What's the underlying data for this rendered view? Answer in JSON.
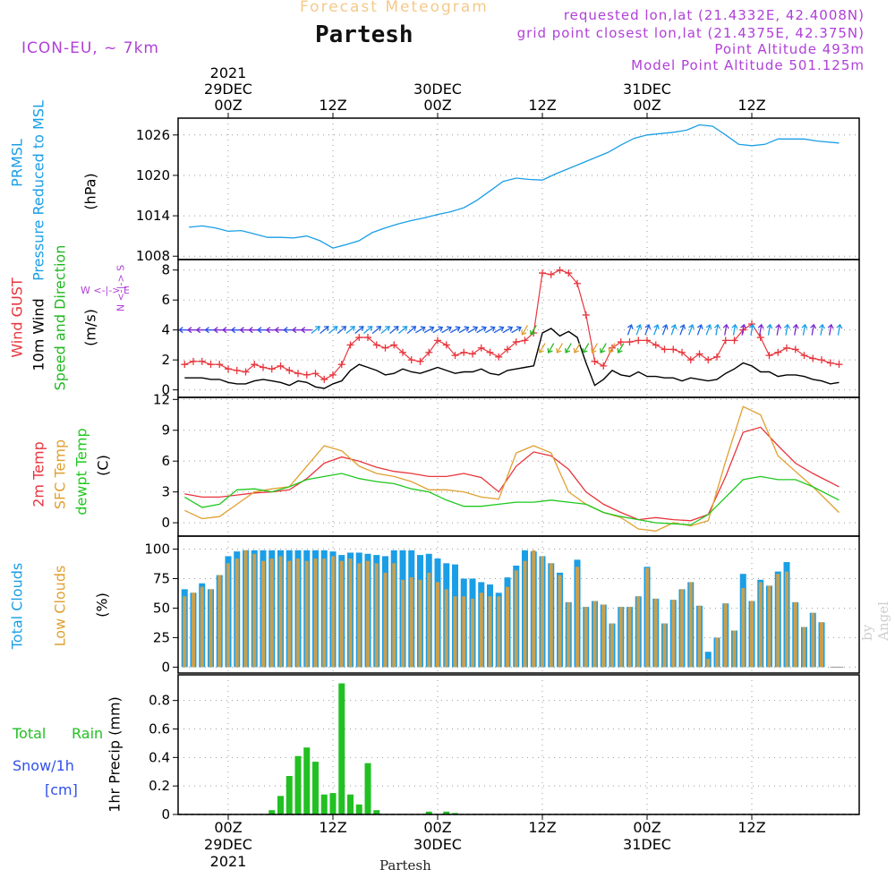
{
  "header": {
    "faint_title": "Forecast Meteogram",
    "location": "Partesh",
    "model": "ICON-EU, ~ 7km",
    "requested": "requested lon,lat (21.4332E, 42.4008N)",
    "grid_point": "grid point closest lon,lat (21.4375E, 42.375N)",
    "point_altitude": "Point Altitude 493m",
    "model_altitude": "Model Point Altitude 501.125m",
    "watermark": "by Angel",
    "bottom_location": "Partesh"
  },
  "colors": {
    "pressure": "#1a9ee6",
    "gust": "#e8353c",
    "wind": "#000000",
    "direction": "#22b822",
    "temp2m": "#e8353c",
    "sfctemp": "#e0a030",
    "dewpt": "#1ec81e",
    "total_clouds": "#1a9ee6",
    "low_clouds": "#c8a050",
    "rain": "#22c022",
    "snow": "#3050e8",
    "label_purple": "#b040d8"
  },
  "time_axis": {
    "top": [
      {
        "hour": 0,
        "lines": [
          "2021",
          "29DEC",
          "00Z"
        ]
      },
      {
        "hour": 12,
        "lines": [
          "12Z"
        ]
      },
      {
        "hour": 24,
        "lines": [
          "30DEC",
          "00Z"
        ]
      },
      {
        "hour": 36,
        "lines": [
          "12Z"
        ]
      },
      {
        "hour": 48,
        "lines": [
          "31DEC",
          "00Z"
        ]
      },
      {
        "hour": 60,
        "lines": [
          "12Z"
        ]
      }
    ],
    "bottom": [
      {
        "hour": 0,
        "lines": [
          "00Z",
          "29DEC",
          "2021"
        ]
      },
      {
        "hour": 12,
        "lines": [
          "12Z"
        ]
      },
      {
        "hour": 24,
        "lines": [
          "00Z",
          "30DEC"
        ]
      },
      {
        "hour": 36,
        "lines": [
          "12Z"
        ]
      },
      {
        "hour": 48,
        "lines": [
          "00Z",
          "31DEC"
        ]
      },
      {
        "hour": 60,
        "lines": [
          "12Z"
        ]
      }
    ]
  },
  "labels": {
    "pressure": {
      "l1": "PRMSL",
      "l2": "Pressure Reduced to MSL",
      "unit": "(hPa)"
    },
    "wind": {
      "l1": "Wind GUST",
      "l2": "10m Wind",
      "l3": "Speed and Direction",
      "unit": "(m/s)",
      "compass_ns": "N <-|-> S",
      "compass_we": "W <-|-> E"
    },
    "temp": {
      "l1": "2m Temp",
      "l2": "SFC Temp",
      "l3": "dewpt Temp",
      "unit": "(C)"
    },
    "clouds": {
      "l1": "Total Clouds",
      "l2": "Low Clouds",
      "unit": "(%)"
    },
    "precip": {
      "rain_l1": "Total",
      "rain_l2": "Rain",
      "snow_l1": "Snow/1h",
      "snow_l2": "[cm]",
      "ylabel": "1hr Precip (mm)"
    }
  },
  "chart_data": [
    {
      "type": "line",
      "title": "PRMSL Pressure Reduced to MSL",
      "ylabel": "(hPa)",
      "ylim": [
        1007.5,
        1028.5
      ],
      "yticks": [
        "1008",
        "1014",
        "1020",
        "1026"
      ],
      "x_hours": [
        -4.5,
        -3,
        -1.5,
        0,
        1.5,
        3,
        4.5,
        6,
        7.5,
        9,
        10.5,
        12,
        13.5,
        15,
        16.5,
        18,
        19.5,
        21,
        22.5,
        24,
        25.5,
        27,
        28.5,
        30,
        31.5,
        33,
        34.5,
        36,
        37.5,
        39,
        40.5,
        42,
        43.5,
        45,
        46.5,
        48,
        49.5,
        51,
        52.5,
        54,
        55.5,
        57,
        58.5,
        60,
        61.5,
        63,
        64.5,
        66,
        67.5,
        70
      ],
      "values": [
        1012.3,
        1012.5,
        1012.2,
        1011.7,
        1011.8,
        1011.3,
        1010.8,
        1010.8,
        1010.7,
        1011.0,
        1010.3,
        1009.2,
        1009.7,
        1010.3,
        1011.5,
        1012.2,
        1012.8,
        1013.3,
        1013.7,
        1014.2,
        1014.6,
        1015.2,
        1016.3,
        1017.7,
        1019.1,
        1019.6,
        1019.4,
        1019.3,
        1020.2,
        1021.0,
        1021.8,
        1022.6,
        1023.4,
        1024.5,
        1025.5,
        1026.0,
        1026.2,
        1026.4,
        1026.7,
        1027.5,
        1027.3,
        1026.0,
        1024.6,
        1024.4,
        1024.6,
        1025.4,
        1025.4,
        1025.4,
        1025.1,
        1024.8
      ]
    },
    {
      "type": "line",
      "title": "Wind GUST / 10m Wind Speed and Direction",
      "ylabel": "(m/s)",
      "ylim": [
        -0.5,
        8.7
      ],
      "yticks": [
        "0",
        "2",
        "4",
        "6",
        "8"
      ],
      "x_hours": [
        -5,
        -4,
        -3,
        -2,
        -1,
        0,
        1,
        2,
        3,
        4,
        5,
        6,
        7,
        8,
        9,
        10,
        11,
        12,
        13,
        14,
        15,
        16,
        17,
        18,
        19,
        20,
        21,
        22,
        23,
        24,
        25,
        26,
        27,
        28,
        29,
        30,
        31,
        32,
        33,
        34,
        35,
        36,
        37,
        38,
        39,
        40,
        41,
        42,
        43,
        44,
        45,
        46,
        47,
        48,
        49,
        50,
        51,
        52,
        53,
        54,
        55,
        56,
        57,
        58,
        59,
        60,
        61,
        62,
        63,
        64,
        65,
        66,
        67,
        68,
        69,
        70
      ],
      "series": [
        {
          "name": "Wind GUST",
          "values": [
            1.7,
            1.9,
            1.9,
            1.7,
            1.7,
            1.4,
            1.3,
            1.2,
            1.7,
            1.5,
            1.4,
            1.6,
            1.3,
            1.1,
            1.0,
            1.1,
            0.7,
            1.0,
            1.7,
            3.0,
            3.5,
            3.5,
            3.0,
            2.8,
            3.0,
            2.5,
            2.0,
            1.9,
            2.5,
            3.3,
            3.0,
            2.3,
            2.5,
            2.4,
            2.8,
            2.5,
            2.2,
            2.7,
            3.2,
            3.3,
            3.8,
            7.8,
            7.7,
            8.0,
            7.8,
            7.1,
            5.0,
            1.9,
            1.6,
            2.8,
            3.2,
            3.2,
            3.3,
            3.3,
            3.0,
            2.7,
            2.7,
            2.5,
            2.0,
            2.4,
            2.0,
            2.2,
            3.3,
            3.3,
            4.0,
            4.4,
            3.5,
            2.3,
            2.5,
            2.8,
            2.7,
            2.3,
            2.1,
            2.0,
            1.8,
            1.7
          ]
        },
        {
          "name": "10m Wind",
          "values": [
            0.8,
            0.8,
            0.8,
            0.7,
            0.7,
            0.5,
            0.4,
            0.4,
            0.6,
            0.7,
            0.6,
            0.5,
            0.3,
            0.6,
            0.5,
            0.2,
            0.1,
            0.4,
            0.6,
            1.3,
            1.7,
            1.5,
            1.3,
            1.0,
            1.1,
            1.4,
            1.2,
            1.1,
            1.3,
            1.5,
            1.3,
            1.1,
            1.2,
            1.2,
            1.4,
            1.1,
            1.0,
            1.3,
            1.4,
            1.5,
            1.6,
            3.8,
            4.1,
            3.6,
            3.9,
            3.5,
            1.8,
            0.3,
            0.7,
            1.3,
            1.0,
            0.9,
            1.2,
            0.9,
            0.9,
            0.8,
            0.8,
            0.6,
            0.8,
            0.7,
            0.6,
            0.7,
            1.1,
            1.4,
            1.8,
            1.6,
            1.2,
            1.2,
            0.9,
            1.0,
            1.0,
            0.9,
            0.7,
            0.6,
            0.4,
            0.5
          ]
        }
      ]
    },
    {
      "type": "line",
      "title": "2m Temp / SFC Temp / dewpt Temp",
      "ylabel": "(C)",
      "ylim": [
        -1.3,
        12.2
      ],
      "yticks": [
        "0",
        "3",
        "6",
        "9",
        "12"
      ],
      "x_hours": [
        -5,
        -3,
        -1,
        1,
        3,
        5,
        7,
        9,
        11,
        13,
        15,
        17,
        19,
        21,
        23,
        25,
        27,
        29,
        31,
        33,
        35,
        37,
        39,
        41,
        43,
        45,
        47,
        49,
        51,
        53,
        55,
        57,
        59,
        61,
        63,
        65,
        67,
        70
      ],
      "series": [
        {
          "name": "2m Temp",
          "values": [
            2.8,
            2.5,
            2.5,
            2.7,
            2.9,
            3.0,
            3.2,
            4.3,
            5.8,
            6.4,
            6.0,
            5.4,
            5.0,
            4.8,
            4.5,
            4.5,
            4.8,
            4.4,
            3.0,
            5.5,
            6.9,
            6.5,
            5.2,
            3.0,
            1.8,
            1.0,
            0.3,
            0.5,
            0.3,
            0.2,
            0.8,
            4.5,
            8.8,
            9.3,
            7.5,
            5.8,
            4.8,
            3.5
          ]
        },
        {
          "name": "SFC Temp",
          "values": [
            1.2,
            0.4,
            0.6,
            1.8,
            3.0,
            3.3,
            3.5,
            5.5,
            7.5,
            7.0,
            5.5,
            4.8,
            4.5,
            4.0,
            3.2,
            3.2,
            3.0,
            2.5,
            2.3,
            6.8,
            7.5,
            6.8,
            3.0,
            1.8,
            1.0,
            0.5,
            -0.6,
            -0.8,
            0.0,
            -0.3,
            0.2,
            6.0,
            11.3,
            10.5,
            6.5,
            5.0,
            3.5,
            1.0
          ]
        },
        {
          "name": "dewpt Temp",
          "values": [
            2.5,
            1.5,
            1.8,
            3.2,
            3.3,
            3.0,
            3.5,
            4.2,
            4.5,
            4.8,
            4.3,
            4.0,
            3.8,
            3.3,
            3.0,
            2.2,
            1.6,
            1.6,
            1.8,
            2.0,
            2.0,
            2.2,
            2.0,
            1.8,
            1.0,
            0.6,
            0.3,
            0.0,
            -0.1,
            -0.2,
            0.8,
            2.5,
            4.2,
            4.5,
            4.2,
            4.2,
            3.5,
            2.2
          ]
        }
      ]
    },
    {
      "type": "bar",
      "title": "Total Clouds / Low Clouds",
      "ylabel": "(%)",
      "ylim": [
        -5,
        111
      ],
      "yticks": [
        "0",
        "25",
        "50",
        "75",
        "100"
      ],
      "categories": [
        -5,
        -4,
        -3,
        -2,
        -1,
        0,
        1,
        2,
        3,
        4,
        5,
        6,
        7,
        8,
        9,
        10,
        11,
        12,
        13,
        14,
        15,
        16,
        17,
        18,
        19,
        20,
        21,
        22,
        23,
        24,
        25,
        26,
        27,
        28,
        29,
        30,
        31,
        32,
        33,
        34,
        35,
        36,
        37,
        38,
        39,
        40,
        41,
        42,
        43,
        44,
        45,
        46,
        47,
        48,
        49,
        50,
        51,
        52,
        53,
        54,
        55,
        56,
        57,
        58,
        59,
        60,
        61,
        62,
        63,
        64,
        65,
        66,
        67,
        68,
        69,
        70
      ],
      "series": [
        {
          "name": "Total Clouds",
          "values": [
            66,
            63,
            71,
            66,
            78,
            94,
            98,
            99,
            99,
            99,
            99,
            99,
            99,
            99,
            99,
            99,
            99,
            98,
            95,
            97,
            97,
            96,
            95,
            94,
            99,
            99,
            99,
            95,
            96,
            92,
            88,
            87,
            75,
            75,
            72,
            70,
            63,
            76,
            86,
            99,
            98,
            94,
            88,
            80,
            55,
            91,
            51,
            56,
            53,
            37,
            51,
            51,
            60,
            85,
            58,
            37,
            57,
            66,
            72,
            52,
            13,
            25,
            54,
            31,
            79,
            56,
            74,
            69,
            81,
            89,
            55,
            34,
            46,
            38,
            0,
            0
          ]
        },
        {
          "name": "Low Clouds",
          "values": [
            60,
            63,
            68,
            66,
            78,
            88,
            92,
            99,
            96,
            90,
            92,
            94,
            90,
            92,
            90,
            92,
            92,
            94,
            90,
            92,
            88,
            90,
            88,
            80,
            88,
            74,
            76,
            74,
            80,
            72,
            66,
            60,
            60,
            58,
            63,
            60,
            60,
            68,
            82,
            90,
            99,
            94,
            88,
            78,
            55,
            85,
            51,
            56,
            53,
            37,
            51,
            51,
            60,
            84,
            58,
            37,
            57,
            66,
            72,
            52,
            7,
            25,
            54,
            31,
            67,
            56,
            72,
            69,
            79,
            81,
            55,
            34,
            46,
            38,
            0,
            0
          ]
        }
      ]
    },
    {
      "type": "bar",
      "title": "Total Rain / Snow per 1h",
      "ylabel": "1hr Precip (mm)",
      "ylim": [
        0,
        0.98
      ],
      "yticks": [
        "0",
        "0.2",
        "0.4",
        "0.6",
        "0.8"
      ],
      "categories": [
        5,
        6,
        7,
        8,
        9,
        10,
        11,
        12,
        13,
        14,
        15,
        16,
        17,
        23,
        25,
        26
      ],
      "series": [
        {
          "name": "Total Rain",
          "values": [
            0.03,
            0.13,
            0.27,
            0.41,
            0.47,
            0.37,
            0.14,
            0.15,
            0.92,
            0.14,
            0.07,
            0.36,
            0.03,
            0.02,
            0.02,
            0.01
          ]
        },
        {
          "name": "Snow/1h",
          "values": [
            0,
            0,
            0,
            0,
            0,
            0,
            0,
            0,
            0,
            0,
            0,
            0,
            0,
            0,
            0,
            0
          ]
        }
      ]
    }
  ]
}
